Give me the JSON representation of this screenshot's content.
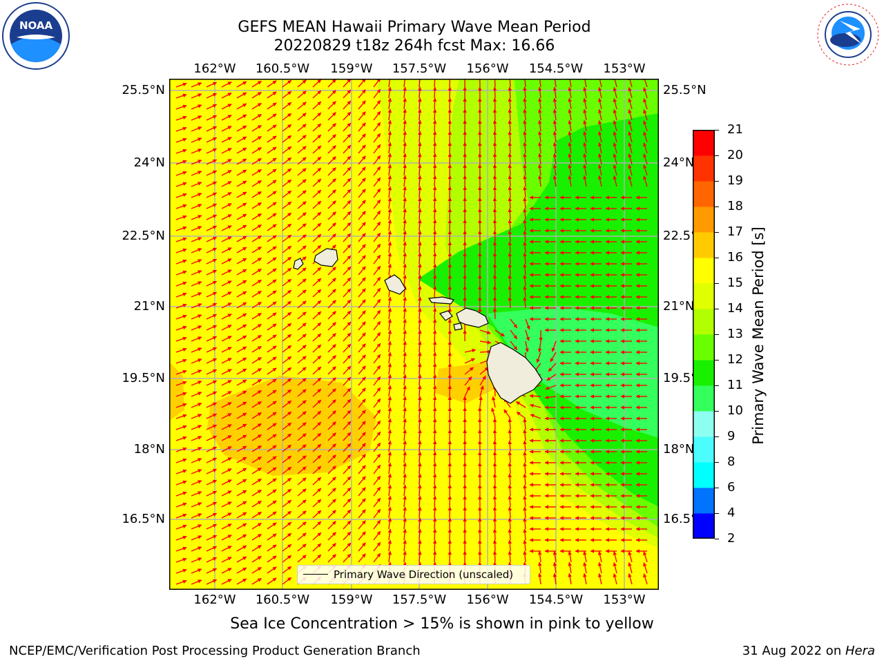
{
  "title_line1": "GEFS MEAN Hawaii Primary Wave Mean Period",
  "title_line2": "20220829 t18z 264h fcst   Max: 16.66",
  "lon_ticks": [
    "162°W",
    "160.5°W",
    "159°W",
    "157.5°W",
    "156°W",
    "154.5°W",
    "153°W"
  ],
  "lat_ticks": [
    "25.5°N",
    "24°N",
    "22.5°N",
    "21°N",
    "19.5°N",
    "18°N",
    "16.5°N"
  ],
  "colorbar": {
    "label": "Primary Wave Mean Period [s]",
    "ticks": [
      "2",
      "4",
      "6",
      "8",
      "9",
      "10",
      "11",
      "12",
      "13",
      "14",
      "15",
      "16",
      "17",
      "18",
      "19",
      "20",
      "21"
    ],
    "colors": [
      "#0000ff",
      "#0073ff",
      "#00ffff",
      "#4cfcff",
      "#8cfff0",
      "#34ff5c",
      "#19f000",
      "#69ff00",
      "#b1ff00",
      "#e0ff00",
      "#ffff00",
      "#ffcb00",
      "#ff9a00",
      "#ff6600",
      "#ff3300",
      "#ff0000"
    ]
  },
  "legend_text": "Primary Wave Direction (unscaled)",
  "note": "Sea Ice Concentration > 15% is shown in pink to yellow",
  "footer_left": "NCEP/EMC/Verification Post Processing Product Generation Branch",
  "footer_right_prefix": "31 Aug 2022 on ",
  "footer_right_machine": "Hera",
  "logos": {
    "noaa": "NOAA",
    "nws": "NATIONAL WEATHER SERVICE"
  },
  "colors": {
    "ocean_base": "#ffff00",
    "arrow": "#ff0000",
    "land": "#f0eddd",
    "grid": "#b0b0b0"
  }
}
